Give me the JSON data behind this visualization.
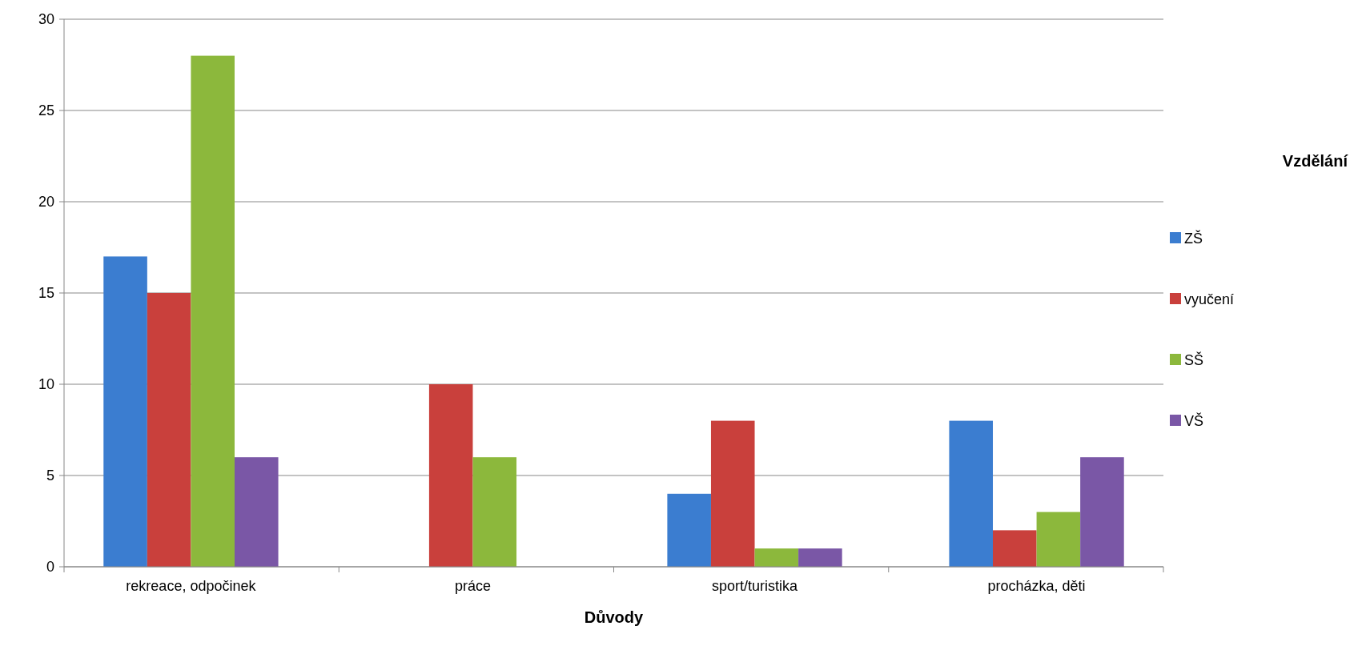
{
  "chart_data": {
    "type": "bar",
    "xlabel": "Důvody",
    "legend_title": "Vzdělání",
    "categories": [
      "rekreace, odpočinek",
      "práce",
      "sport/turistika",
      "procházka, děti"
    ],
    "series": [
      {
        "name": "ZŠ",
        "color": "#3b7dd0",
        "values": [
          17,
          0,
          4,
          8
        ]
      },
      {
        "name": "vyučení",
        "color": "#c9403c",
        "values": [
          15,
          10,
          8,
          2
        ]
      },
      {
        "name": "SŠ",
        "color": "#8cb83c",
        "values": [
          28,
          6,
          1,
          3
        ]
      },
      {
        "name": "VŠ",
        "color": "#7a57a6",
        "values": [
          6,
          0,
          1,
          6
        ]
      }
    ],
    "ylim": [
      0,
      30
    ],
    "yticks": [
      0,
      5,
      10,
      15,
      20,
      25,
      30
    ],
    "grid": "y",
    "legend": "right"
  }
}
